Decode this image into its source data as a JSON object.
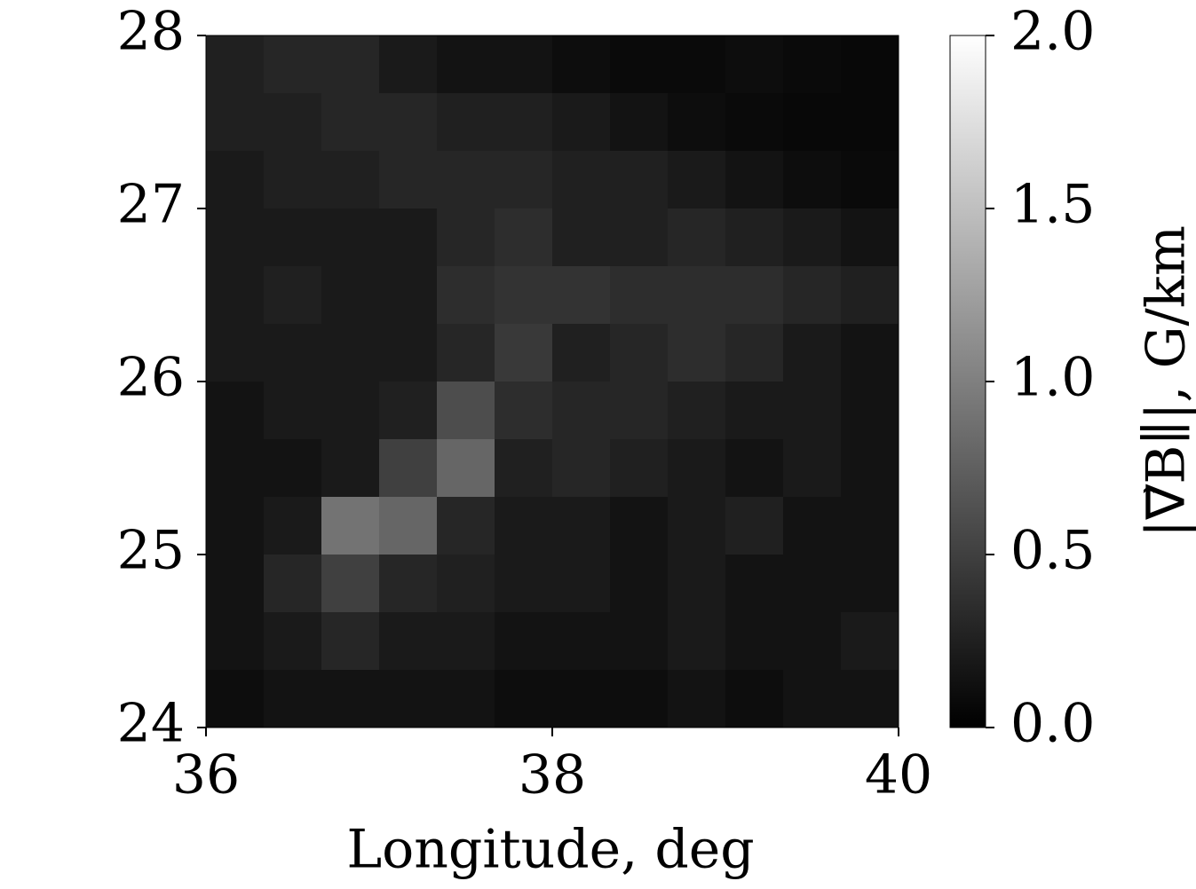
{
  "chart_data": {
    "type": "heatmap",
    "xlabel": "Longitude, deg",
    "colorbar_label": "|∇⃗B∥|, G/km",
    "xlim": [
      36,
      40
    ],
    "xticks": [
      36,
      38,
      40
    ],
    "ylim": [
      24,
      28
    ],
    "yticks": [
      24,
      25,
      26,
      27,
      28
    ],
    "colormap": [
      "#000000",
      "#ffffff"
    ],
    "clim": [
      0,
      2
    ],
    "cticks": [
      {
        "value": 0,
        "label": "0.0"
      },
      {
        "value": 0.5,
        "label": "0.5"
      },
      {
        "value": 1,
        "label": "1.0"
      },
      {
        "value": 1.5,
        "label": "1.5"
      },
      {
        "value": 2,
        "label": "2.0"
      }
    ],
    "values": [
      [
        0.25,
        0.3,
        0.3,
        0.2,
        0.15,
        0.15,
        0.1,
        0.08,
        0.08,
        0.1,
        0.08,
        0.06
      ],
      [
        0.25,
        0.25,
        0.3,
        0.3,
        0.25,
        0.25,
        0.2,
        0.15,
        0.1,
        0.08,
        0.06,
        0.06
      ],
      [
        0.2,
        0.25,
        0.25,
        0.3,
        0.3,
        0.3,
        0.25,
        0.25,
        0.2,
        0.15,
        0.1,
        0.08
      ],
      [
        0.2,
        0.2,
        0.2,
        0.2,
        0.3,
        0.35,
        0.25,
        0.25,
        0.3,
        0.25,
        0.2,
        0.15
      ],
      [
        0.2,
        0.25,
        0.2,
        0.2,
        0.35,
        0.4,
        0.4,
        0.35,
        0.35,
        0.35,
        0.3,
        0.25
      ],
      [
        0.2,
        0.2,
        0.2,
        0.2,
        0.3,
        0.45,
        0.25,
        0.3,
        0.35,
        0.3,
        0.2,
        0.15
      ],
      [
        0.15,
        0.2,
        0.2,
        0.25,
        0.6,
        0.35,
        0.3,
        0.3,
        0.25,
        0.2,
        0.2,
        0.15
      ],
      [
        0.15,
        0.15,
        0.2,
        0.5,
        0.8,
        0.25,
        0.3,
        0.25,
        0.2,
        0.15,
        0.2,
        0.15
      ],
      [
        0.15,
        0.2,
        0.9,
        0.8,
        0.3,
        0.2,
        0.2,
        0.15,
        0.2,
        0.25,
        0.15,
        0.15
      ],
      [
        0.15,
        0.3,
        0.5,
        0.3,
        0.25,
        0.2,
        0.2,
        0.15,
        0.2,
        0.15,
        0.15,
        0.15
      ],
      [
        0.15,
        0.2,
        0.3,
        0.2,
        0.2,
        0.15,
        0.15,
        0.15,
        0.2,
        0.15,
        0.15,
        0.2
      ],
      [
        0.1,
        0.15,
        0.15,
        0.15,
        0.15,
        0.1,
        0.1,
        0.1,
        0.15,
        0.1,
        0.15,
        0.15
      ]
    ]
  }
}
